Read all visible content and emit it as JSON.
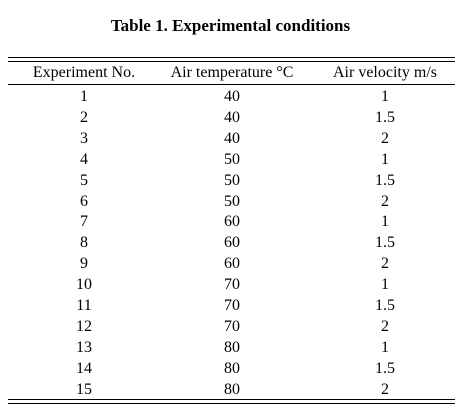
{
  "table": {
    "title": "Table 1. Experimental conditions",
    "headers": [
      "Experiment No.",
      "Air temperature °C",
      "Air velocity m/s"
    ],
    "rows": [
      [
        1,
        40,
        1
      ],
      [
        2,
        40,
        1.5
      ],
      [
        3,
        40,
        2
      ],
      [
        4,
        50,
        1
      ],
      [
        5,
        50,
        1.5
      ],
      [
        6,
        50,
        2
      ],
      [
        7,
        60,
        1
      ],
      [
        8,
        60,
        1.5
      ],
      [
        9,
        60,
        2
      ],
      [
        10,
        70,
        1
      ],
      [
        11,
        70,
        1.5
      ],
      [
        12,
        70,
        2
      ],
      [
        13,
        80,
        1
      ],
      [
        14,
        80,
        1.5
      ],
      [
        15,
        80,
        2
      ]
    ]
  }
}
